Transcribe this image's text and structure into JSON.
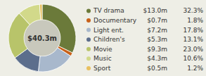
{
  "chart_data": {
    "type": "pie",
    "center_label": "$40.3m",
    "categories": [
      "TV drama",
      "Documentary",
      "Light ent.",
      "Children's",
      "Movie",
      "Music",
      "Sport"
    ],
    "values": [
      13.0,
      0.7,
      7.2,
      5.3,
      9.3,
      4.3,
      0.5
    ],
    "value_labels": [
      "$13.0m",
      "$0.7m",
      "$7.2m",
      "$5.3m",
      "$9.3m",
      "$4.3m",
      "$0.5m"
    ],
    "shares": [
      32.3,
      1.8,
      17.8,
      13.1,
      23.0,
      10.6,
      1.2
    ],
    "share_labels": [
      "32.3%",
      "1.8%",
      "17.8%",
      "13.1%",
      "23.0%",
      "10.6%",
      "1.2%"
    ],
    "colors": [
      "#6b7a3a",
      "#c8611a",
      "#a8b8cc",
      "#5c6e8c",
      "#b8c46a",
      "#d2d98a",
      "#e8c060"
    ],
    "legend": "right"
  }
}
